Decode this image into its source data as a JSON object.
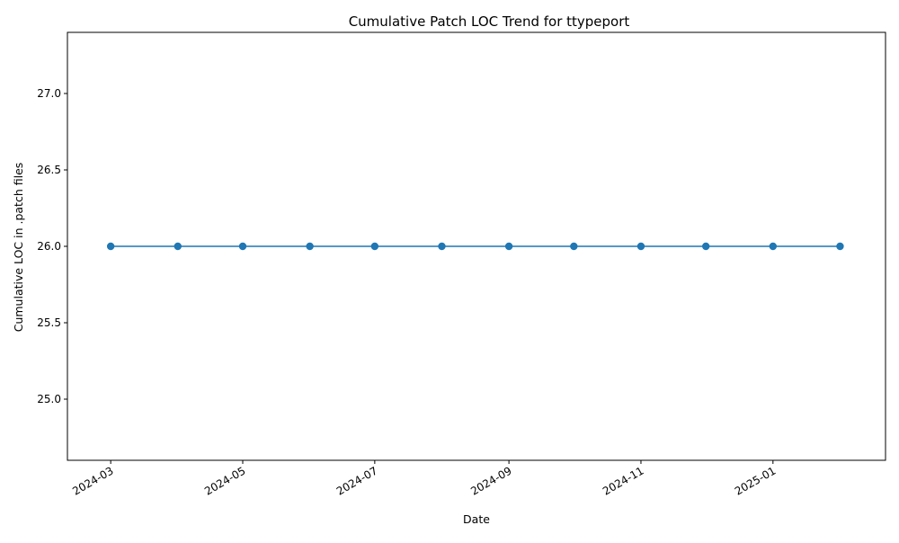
{
  "chart_data": {
    "type": "line",
    "title": "Cumulative Patch LOC Trend for ttypeport",
    "xlabel": "Date",
    "ylabel": "Cumulative LOC in .patch files",
    "x": [
      "2024-03-01",
      "2024-04-01",
      "2024-05-01",
      "2024-06-01",
      "2024-07-01",
      "2024-08-01",
      "2024-09-01",
      "2024-10-01",
      "2024-11-01",
      "2024-12-01",
      "2025-01-01",
      "2025-02-01"
    ],
    "series": [
      {
        "values": [
          26,
          26,
          26,
          26,
          26,
          26,
          26,
          26,
          26,
          26,
          26,
          26
        ],
        "color": "#1f77b4",
        "marker": "circle"
      }
    ],
    "ylim": [
      24.6,
      27.4
    ],
    "xlim": [
      "2024-02-10",
      "2025-02-22"
    ],
    "y_ticks": [
      "25.0",
      "25.5",
      "26.0",
      "26.5",
      "27.0"
    ],
    "x_ticks": [
      "2024-03",
      "2024-05",
      "2024-07",
      "2024-09",
      "2024-11",
      "2025-01"
    ],
    "grid": false,
    "legend": "none"
  }
}
